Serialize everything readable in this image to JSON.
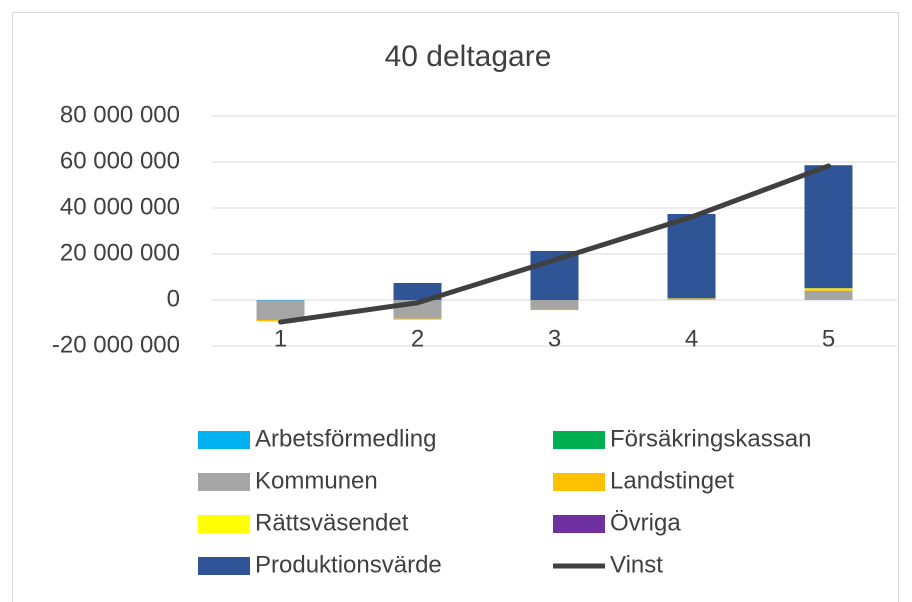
{
  "chart_data": {
    "type": "bar",
    "stacked": true,
    "title": "40 deltagare",
    "categories": [
      "1",
      "2",
      "3",
      "4",
      "5"
    ],
    "series": [
      {
        "name": "Arbetsförmedling",
        "color": "#00b0f0",
        "values": [
          -200000,
          -100000,
          0,
          0,
          0
        ]
      },
      {
        "name": "Försäkringskassan",
        "color": "#00b050",
        "values": [
          0,
          0,
          0,
          0,
          0
        ]
      },
      {
        "name": "Kommunen",
        "color": "#a5a5a5",
        "values": [
          -8500000,
          -8000000,
          -4300000,
          300000,
          4000000
        ]
      },
      {
        "name": "Landstinget",
        "color": "#ffc000",
        "values": [
          -500000,
          -400000,
          -100000,
          300000,
          600000
        ]
      },
      {
        "name": "Rättsväsendet",
        "color": "#ffff00",
        "values": [
          -300000,
          -200000,
          0,
          100000,
          500000
        ]
      },
      {
        "name": "Övriga",
        "color": "#7030a0",
        "values": [
          0,
          0,
          0,
          0,
          0
        ]
      },
      {
        "name": "Produktionsvärde",
        "color": "#2f5597",
        "values": [
          0,
          7400000,
          21300000,
          36700000,
          53500000
        ]
      },
      {
        "name": "Vinst",
        "color": "#404040",
        "type": "line",
        "values": [
          -9600000,
          -1200000,
          17400000,
          36100000,
          58300000
        ]
      }
    ],
    "ylim": [
      -20000000,
      80000000
    ],
    "yticks": [
      {
        "value": -20000000,
        "label": "-20 000 000"
      },
      0,
      {
        "value": 20000000,
        "label": "20 000 000"
      },
      {
        "value": 40000000,
        "label": "40 000 000"
      },
      {
        "value": 60000000,
        "label": "60 000 000"
      },
      {
        "value": 80000000,
        "label": "80 000 000"
      }
    ],
    "grid": true,
    "legend": "bottom"
  }
}
